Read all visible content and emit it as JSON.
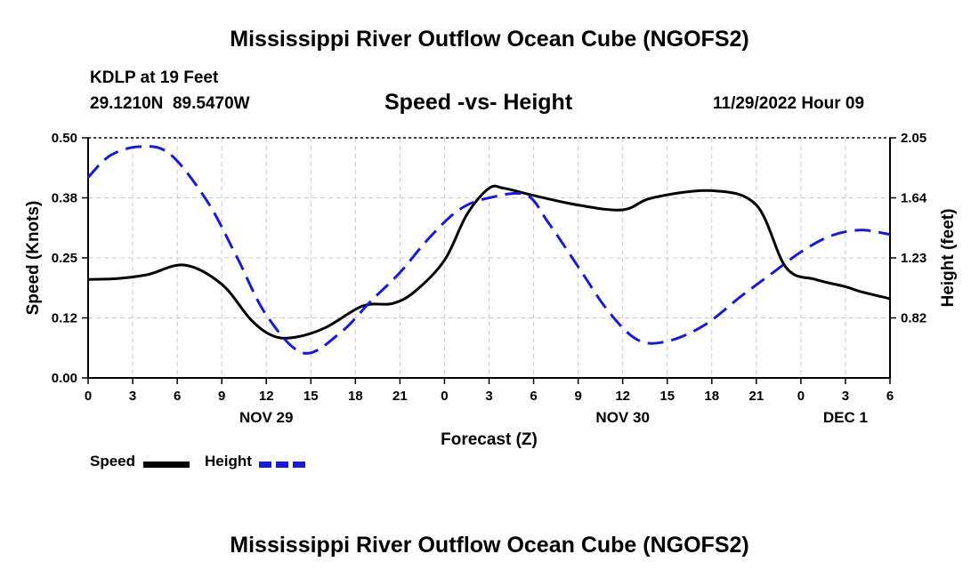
{
  "header": {
    "title": "Mississippi River Outflow Ocean Cube (NGOFS2)",
    "station": "KDLP at 19 Feet",
    "coords": "29.1210N  89.5470W",
    "subtitle": "Speed -vs- Height",
    "timestamp": "11/29/2022 Hour 09"
  },
  "footer": {
    "title": "Mississippi River Outflow Ocean Cube (NGOFS2)"
  },
  "legend": {
    "speed_label": "Speed",
    "height_label": "Height"
  },
  "colors": {
    "speed": "#000000",
    "height": "#1a1ad0",
    "grid": "#c8c8c8"
  },
  "chart_data": {
    "type": "line",
    "title": "Speed -vs- Height",
    "xlabel": "Forecast (Z)",
    "ylabel": "Speed (Knots)",
    "y2label": "Height (feet)",
    "xlim": [
      0,
      54
    ],
    "ylim": [
      0,
      0.5
    ],
    "y2lim": [
      0.41,
      2.05
    ],
    "x_ticks": [
      0,
      3,
      6,
      9,
      12,
      15,
      18,
      21,
      24,
      27,
      30,
      33,
      36,
      39,
      42,
      45,
      48,
      51,
      54
    ],
    "x_tick_labels": [
      "0",
      "3",
      "6",
      "9",
      "12",
      "15",
      "18",
      "21",
      "0",
      "3",
      "6",
      "9",
      "12",
      "15",
      "18",
      "21",
      "0",
      "3",
      "6"
    ],
    "y_ticks": [
      0,
      0.125,
      0.25,
      0.375,
      0.5
    ],
    "y_tick_labels": [
      "0.00",
      "0.12",
      "0.25",
      "0.38",
      "0.50"
    ],
    "y2_ticks": [
      0.82,
      1.23,
      1.64,
      2.05
    ],
    "y2_tick_labels": [
      "0.82",
      "1.23",
      "1.64",
      "2.05"
    ],
    "day_labels": [
      {
        "x": 12,
        "label": "NOV 29"
      },
      {
        "x": 36,
        "label": "NOV 30"
      },
      {
        "x": 51,
        "label": "DEC 1"
      }
    ],
    "grid": true,
    "series": [
      {
        "name": "Speed",
        "axis": "left",
        "style": "solid",
        "x": [
          0,
          2,
          4,
          6.5,
          9,
          11,
          12.5,
          14,
          16,
          18.5,
          20.5,
          22,
          24,
          25.5,
          27,
          28,
          30,
          33,
          36,
          38,
          42,
          45,
          47,
          49,
          51,
          52,
          54
        ],
        "values": [
          0.205,
          0.207,
          0.215,
          0.235,
          0.195,
          0.12,
          0.087,
          0.085,
          0.105,
          0.15,
          0.155,
          0.18,
          0.245,
          0.34,
          0.395,
          0.395,
          0.38,
          0.36,
          0.35,
          0.375,
          0.39,
          0.36,
          0.23,
          0.205,
          0.19,
          0.18,
          0.165
        ]
      },
      {
        "name": "Height",
        "axis": "right",
        "style": "dashed",
        "x": [
          0,
          1.5,
          3.5,
          5.5,
          8,
          10,
          12,
          14.5,
          17,
          19,
          21,
          23,
          25,
          27,
          29.5,
          31,
          33,
          35,
          37,
          39,
          41.5,
          44,
          46,
          48,
          50,
          52,
          54
        ],
        "values": [
          1.78,
          1.93,
          1.99,
          1.94,
          1.62,
          1.24,
          0.84,
          0.58,
          0.72,
          0.93,
          1.13,
          1.37,
          1.56,
          1.64,
          1.66,
          1.47,
          1.17,
          0.87,
          0.67,
          0.66,
          0.77,
          0.97,
          1.12,
          1.27,
          1.38,
          1.42,
          1.39
        ]
      }
    ]
  }
}
